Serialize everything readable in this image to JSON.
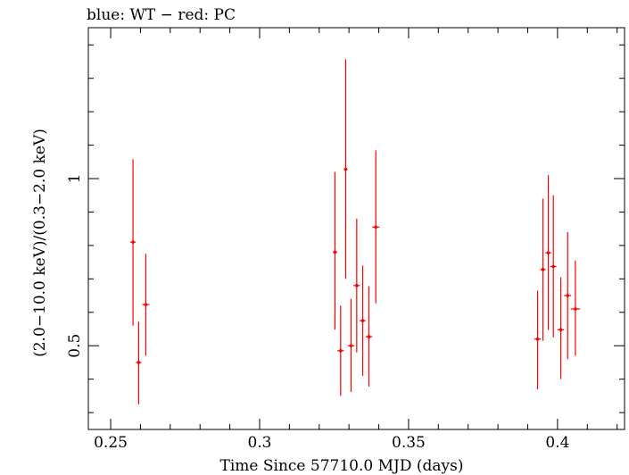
{
  "chart_data": {
    "type": "scatter",
    "title": "blue: WT − red: PC",
    "xlabel": "Time Since 57710.0 MJD (days)",
    "ylabel": "(2.0−10.0 keV)/(0.3−2.0 keV)",
    "xlim": [
      0.2425,
      0.4225
    ],
    "ylim": [
      0.2495,
      1.4515
    ],
    "x_ticks": [
      {
        "value": 0.25,
        "label": "0.25"
      },
      {
        "value": 0.3,
        "label": "0.3"
      },
      {
        "value": 0.35,
        "label": "0.35"
      },
      {
        "value": 0.4,
        "label": "0.4"
      }
    ],
    "y_ticks": [
      {
        "value": 0.5,
        "label": "0.5"
      },
      {
        "value": 1.0,
        "label": "1"
      }
    ],
    "series": [
      {
        "name": "PC",
        "color": "#ff0000",
        "points": [
          {
            "x": 0.2575,
            "y": 0.81,
            "xerr": 0.0009,
            "ylo": 0.56,
            "yhi": 1.058
          },
          {
            "x": 0.2594,
            "y": 0.45,
            "xerr": 0.0009,
            "ylo": 0.325,
            "yhi": 0.572
          },
          {
            "x": 0.2618,
            "y": 0.623,
            "xerr": 0.0012,
            "ylo": 0.47,
            "yhi": 0.775
          },
          {
            "x": 0.3253,
            "y": 0.78,
            "xerr": 0.0007,
            "ylo": 0.548,
            "yhi": 1.02
          },
          {
            "x": 0.3272,
            "y": 0.485,
            "xerr": 0.0011,
            "ylo": 0.35,
            "yhi": 0.62
          },
          {
            "x": 0.3289,
            "y": 1.028,
            "xerr": 0.0006,
            "ylo": 0.7,
            "yhi": 1.357
          },
          {
            "x": 0.3307,
            "y": 0.5,
            "xerr": 0.0011,
            "ylo": 0.362,
            "yhi": 0.64
          },
          {
            "x": 0.3326,
            "y": 0.68,
            "xerr": 0.0011,
            "ylo": 0.48,
            "yhi": 0.88
          },
          {
            "x": 0.3346,
            "y": 0.575,
            "xerr": 0.001,
            "ylo": 0.41,
            "yhi": 0.74
          },
          {
            "x": 0.3367,
            "y": 0.527,
            "xerr": 0.0011,
            "ylo": 0.378,
            "yhi": 0.678
          },
          {
            "x": 0.339,
            "y": 0.855,
            "xerr": 0.0012,
            "ylo": 0.627,
            "yhi": 1.085
          },
          {
            "x": 0.3933,
            "y": 0.52,
            "xerr": 0.0011,
            "ylo": 0.37,
            "yhi": 0.665
          },
          {
            "x": 0.3951,
            "y": 0.728,
            "xerr": 0.0009,
            "ylo": 0.515,
            "yhi": 0.94
          },
          {
            "x": 0.3969,
            "y": 0.778,
            "xerr": 0.001,
            "ylo": 0.547,
            "yhi": 1.01
          },
          {
            "x": 0.3986,
            "y": 0.737,
            "xerr": 0.001,
            "ylo": 0.525,
            "yhi": 0.95
          },
          {
            "x": 0.4011,
            "y": 0.548,
            "xerr": 0.0011,
            "ylo": 0.4,
            "yhi": 0.705
          },
          {
            "x": 0.4034,
            "y": 0.65,
            "xerr": 0.0012,
            "ylo": 0.46,
            "yhi": 0.84
          },
          {
            "x": 0.406,
            "y": 0.61,
            "xerr": 0.0016,
            "ylo": 0.47,
            "yhi": 0.755
          }
        ]
      }
    ]
  }
}
